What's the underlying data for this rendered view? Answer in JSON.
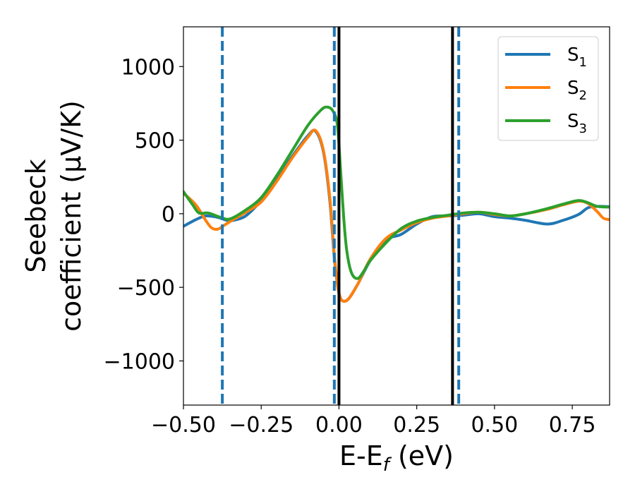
{
  "chart_data": {
    "type": "line",
    "title": "",
    "xlabel": {
      "main": "E-E",
      "sub": "f",
      "unit": " (eV)"
    },
    "ylabel": {
      "line1": "Seebeck",
      "line2": "coefficient  (μV/K)"
    },
    "xlim": [
      -0.5,
      0.87
    ],
    "ylim": [
      -1300,
      1270
    ],
    "xticks": [
      -0.5,
      -0.25,
      0.0,
      0.25,
      0.5,
      0.75
    ],
    "xtick_labels": [
      "−0.50",
      "−0.25",
      "0.00",
      "0.25",
      "0.50",
      "0.75"
    ],
    "yticks": [
      1000,
      500,
      0,
      -500,
      -1000
    ],
    "ytick_labels": [
      "1000",
      "500",
      "0",
      "−500",
      "−1000"
    ],
    "grid": false,
    "legend_position": "top-right",
    "series": [
      {
        "name": "S1",
        "label_main": "S",
        "label_sub": "1",
        "color": "#1f77b4",
        "x": [
          -0.5,
          -0.46,
          -0.43,
          -0.4,
          -0.38,
          -0.36,
          -0.34,
          -0.3,
          -0.25,
          -0.2,
          -0.15,
          -0.1,
          -0.075,
          -0.05,
          -0.03,
          -0.015,
          -0.005,
          0.0,
          0.01,
          0.03,
          0.06,
          0.1,
          0.15,
          0.2,
          0.25,
          0.3,
          0.35,
          0.4,
          0.45,
          0.5,
          0.55,
          0.6,
          0.67,
          0.72,
          0.77,
          0.8,
          0.83,
          0.87
        ],
        "y": [
          -85,
          -40,
          -15,
          -20,
          -30,
          -45,
          -45,
          -15,
          90,
          230,
          390,
          530,
          560,
          420,
          100,
          -300,
          -480,
          -540,
          -590,
          -580,
          -480,
          -320,
          -180,
          -140,
          -70,
          -20,
          -15,
          -10,
          0,
          -20,
          -30,
          -45,
          -70,
          -45,
          -5,
          40,
          50,
          48
        ]
      },
      {
        "name": "S2",
        "label_main": "S",
        "label_sub": "2",
        "color": "#ff7f0e",
        "x": [
          -0.5,
          -0.46,
          -0.43,
          -0.41,
          -0.39,
          -0.37,
          -0.34,
          -0.3,
          -0.25,
          -0.2,
          -0.15,
          -0.1,
          -0.075,
          -0.05,
          -0.03,
          -0.015,
          -0.005,
          0.0,
          0.01,
          0.03,
          0.06,
          0.1,
          0.15,
          0.2,
          0.25,
          0.3,
          0.35,
          0.4,
          0.45,
          0.5,
          0.55,
          0.6,
          0.67,
          0.72,
          0.77,
          0.8,
          0.83,
          0.85,
          0.87
        ],
        "y": [
          140,
          60,
          -40,
          -95,
          -105,
          -80,
          -40,
          10,
          80,
          220,
          380,
          520,
          565,
          430,
          120,
          -280,
          -470,
          -540,
          -590,
          -580,
          -480,
          -310,
          -170,
          -110,
          -60,
          -30,
          -15,
          0,
          10,
          -5,
          -15,
          0,
          30,
          60,
          85,
          70,
          15,
          -30,
          -40
        ]
      },
      {
        "name": "S3",
        "label_main": "S",
        "label_sub": "3",
        "color": "#2ca02c",
        "x": [
          -0.5,
          -0.47,
          -0.45,
          -0.42,
          -0.38,
          -0.35,
          -0.3,
          -0.25,
          -0.2,
          -0.15,
          -0.1,
          -0.06,
          -0.04,
          -0.02,
          -0.005,
          0.005,
          0.015,
          0.025,
          0.04,
          0.06,
          0.08,
          0.1,
          0.15,
          0.2,
          0.25,
          0.3,
          0.35,
          0.4,
          0.45,
          0.5,
          0.55,
          0.6,
          0.67,
          0.72,
          0.77,
          0.8,
          0.83,
          0.87
        ],
        "y": [
          150,
          60,
          5,
          5,
          -25,
          -35,
          25,
          110,
          260,
          430,
          600,
          700,
          725,
          700,
          600,
          300,
          -20,
          -250,
          -400,
          -440,
          -390,
          -320,
          -200,
          -100,
          -50,
          -25,
          -10,
          5,
          10,
          0,
          -15,
          0,
          35,
          65,
          90,
          75,
          50,
          45
        ]
      }
    ],
    "reference_lines": [
      {
        "x": -0.375,
        "style": "dashed",
        "color": "#1f77b4"
      },
      {
        "x": -0.015,
        "style": "dashed",
        "color": "#1f77b4"
      },
      {
        "x": 0.385,
        "style": "dashed",
        "color": "#1f77b4"
      },
      {
        "x": 0.0,
        "style": "solid",
        "color": "#000000"
      },
      {
        "x": 0.365,
        "style": "solid",
        "color": "#000000"
      }
    ]
  }
}
